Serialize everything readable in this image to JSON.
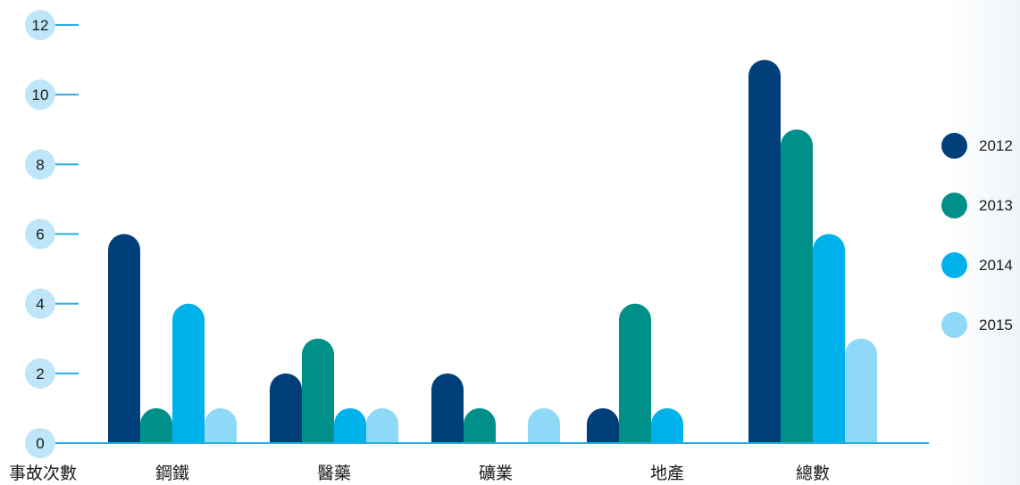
{
  "chart_data": {
    "type": "bar",
    "ylabel": "事故次數",
    "categories": [
      "鋼鐵",
      "醫藥",
      "礦業",
      "地產",
      "總數"
    ],
    "ylim": [
      0,
      12
    ],
    "yticks": [
      0,
      2,
      4,
      6,
      8,
      10,
      12
    ],
    "grid": false,
    "legend_position": "right",
    "series": [
      {
        "name": "2012",
        "color": "#003f7a",
        "values": [
          6,
          2,
          2,
          1,
          11
        ]
      },
      {
        "name": "2013",
        "color": "#00908a",
        "values": [
          1,
          3,
          1,
          4,
          9
        ]
      },
      {
        "name": "2014",
        "color": "#00b2ec",
        "values": [
          4,
          1,
          0,
          1,
          6
        ]
      },
      {
        "name": "2015",
        "color": "#8ed8f8",
        "values": [
          1,
          1,
          1,
          0,
          3
        ]
      }
    ],
    "axis_color": "#29abe2",
    "tick_bubble_color": "#bfe6f8"
  }
}
